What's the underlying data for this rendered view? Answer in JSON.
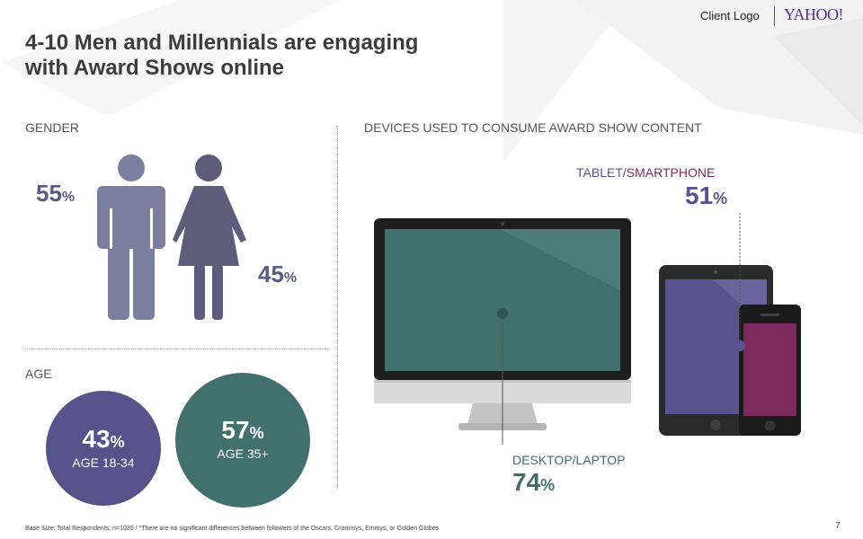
{
  "title_line1": "4-10 Men and Millennials are engaging",
  "title_line2": "with Award Shows online",
  "header": {
    "client_logo": "Client Logo",
    "yahoo_logo": "YAHOO!"
  },
  "gender": {
    "label": "GENDER",
    "male": {
      "value": "55",
      "sign": "%"
    },
    "female": {
      "value": "45",
      "sign": "%"
    }
  },
  "age": {
    "label": "AGE",
    "young": {
      "value": "43",
      "sign": "%",
      "label": "AGE 18-34"
    },
    "older": {
      "value": "57",
      "sign": "%",
      "label": "AGE 35+"
    }
  },
  "devices": {
    "label": "DEVICES USED TO CONSUME AWARD SHOW CONTENT",
    "mobile": {
      "label_part1": "TABLET/",
      "label_part2": "SMARTPHONE",
      "value": "51",
      "sign": "%"
    },
    "desktop": {
      "label": "DESKTOP/LAPTOP",
      "value": "74",
      "sign": "%"
    }
  },
  "colors": {
    "male": "#7a7f9e",
    "female": "#5d5c7b",
    "young_circle": "#56528a",
    "older_circle": "#42706d",
    "desktop_accent": "#3f6e6b",
    "tablet_accent": "#5a5390",
    "smartphone_accent": "#7c2a5d"
  },
  "footnote": "Base Size: Total Respondents, n=1035 / *There are no significant differences between followers of the Oscars, Grammys, Emmys, or Golden Globes",
  "page_number": "7"
}
